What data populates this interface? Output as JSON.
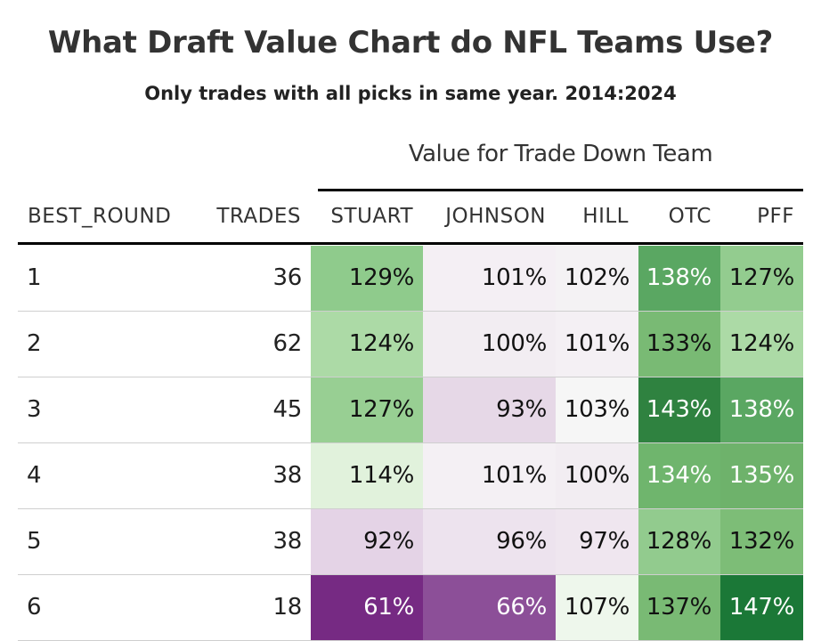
{
  "chart_data": {
    "type": "table",
    "title": "What Draft Value Chart do NFL Teams Use?",
    "subtitle": "Only trades with all picks in same year. 2014:2024",
    "spanner": "Value for Trade Down Team",
    "columns": [
      "BEST_ROUND",
      "TRADES",
      "STUART",
      "JOHNSON",
      "HILL",
      "OTC",
      "PFF"
    ],
    "rows": [
      {
        "best_round": "1",
        "trades": "36",
        "values": [
          "129%",
          "101%",
          "102%",
          "138%",
          "127%"
        ],
        "colors": [
          "#8fcb8c",
          "#f4eff4",
          "#f4f2f4",
          "#5aa762",
          "#93cc8f"
        ],
        "text_colors": [
          "#111111",
          "#111111",
          "#111111",
          "#ffffff",
          "#111111"
        ]
      },
      {
        "best_round": "2",
        "trades": "62",
        "values": [
          "124%",
          "100%",
          "101%",
          "133%",
          "124%"
        ],
        "colors": [
          "#acdaa6",
          "#f2edf2",
          "#f4f0f4",
          "#79ba74",
          "#acdaa6"
        ],
        "text_colors": [
          "#111111",
          "#111111",
          "#111111",
          "#111111",
          "#111111"
        ]
      },
      {
        "best_round": "3",
        "trades": "45",
        "values": [
          "127%",
          "93%",
          "103%",
          "143%",
          "138%"
        ],
        "colors": [
          "#98cf93",
          "#e6d8e7",
          "#f6f6f6",
          "#2f8240",
          "#5aa762"
        ],
        "text_colors": [
          "#111111",
          "#111111",
          "#111111",
          "#ffffff",
          "#ffffff"
        ]
      },
      {
        "best_round": "4",
        "trades": "38",
        "values": [
          "114%",
          "101%",
          "100%",
          "134%",
          "135%"
        ],
        "colors": [
          "#e1f2dc",
          "#f4f0f4",
          "#f2edf2",
          "#6fb56d",
          "#6eb26b"
        ],
        "text_colors": [
          "#111111",
          "#111111",
          "#111111",
          "#ffffff",
          "#ffffff"
        ]
      },
      {
        "best_round": "5",
        "trades": "38",
        "values": [
          "92%",
          "96%",
          "97%",
          "128%",
          "132%"
        ],
        "colors": [
          "#e4d3e6",
          "#ede3ee",
          "#efe6ef",
          "#92cb8e",
          "#7dbd77"
        ],
        "text_colors": [
          "#111111",
          "#111111",
          "#111111",
          "#111111",
          "#111111"
        ]
      },
      {
        "best_round": "6",
        "trades": "18",
        "values": [
          "61%",
          "66%",
          "107%",
          "137%",
          "147%"
        ],
        "colors": [
          "#762a83",
          "#8c4f98",
          "#eef7ec",
          "#79ba74",
          "#1b7837"
        ],
        "text_colors": [
          "#ffffff",
          "#ffffff",
          "#111111",
          "#111111",
          "#ffffff"
        ]
      }
    ]
  }
}
